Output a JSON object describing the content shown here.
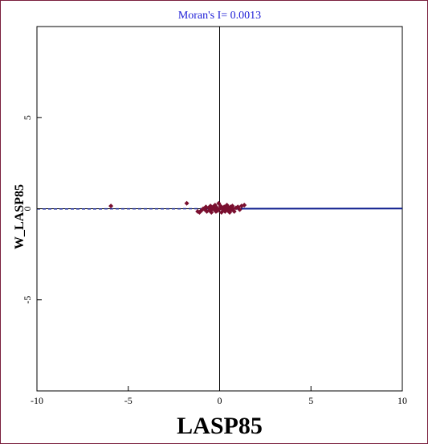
{
  "chart_data": {
    "type": "scatter",
    "title": "Moran's I= 0.0013",
    "xlabel": "LASP85",
    "ylabel": "W_LASP85",
    "xlim": [
      -10,
      10
    ],
    "ylim": [
      -10,
      10
    ],
    "x_ticks": [
      {
        "value": -10,
        "label": "-10"
      },
      {
        "value": -5,
        "label": "-5"
      },
      {
        "value": 0,
        "label": "0"
      },
      {
        "value": 5,
        "label": "5"
      },
      {
        "value": 10,
        "label": "10"
      }
    ],
    "y_ticks": [
      {
        "value": -5,
        "label": "-5"
      },
      {
        "value": 0,
        "label": "0"
      },
      {
        "value": 5,
        "label": "5"
      }
    ],
    "grid": false,
    "regression_slope": 0.0013,
    "colors": {
      "points": "#7a1030",
      "regression_line": "#0a1a8c",
      "title": "#1c1cd6",
      "axes": "#000000",
      "frame": "#7a1f3d"
    },
    "points": [
      {
        "x": -5.95,
        "y": 0.15
      },
      {
        "x": -1.8,
        "y": 0.3
      },
      {
        "x": -1.2,
        "y": -0.15
      },
      {
        "x": -1.1,
        "y": -0.2
      },
      {
        "x": -1.0,
        "y": -0.1
      },
      {
        "x": -0.9,
        "y": 0.0
      },
      {
        "x": -0.8,
        "y": -0.05
      },
      {
        "x": -0.75,
        "y": 0.1
      },
      {
        "x": -0.7,
        "y": -0.15
      },
      {
        "x": -0.6,
        "y": 0.05
      },
      {
        "x": -0.55,
        "y": -0.1
      },
      {
        "x": -0.5,
        "y": 0.15
      },
      {
        "x": -0.45,
        "y": -0.2
      },
      {
        "x": -0.4,
        "y": 0.0
      },
      {
        "x": -0.35,
        "y": 0.1
      },
      {
        "x": -0.3,
        "y": -0.05
      },
      {
        "x": -0.25,
        "y": 0.2
      },
      {
        "x": -0.2,
        "y": -0.15
      },
      {
        "x": -0.15,
        "y": 0.05
      },
      {
        "x": -0.1,
        "y": -0.1
      },
      {
        "x": -0.05,
        "y": 0.3
      },
      {
        "x": 0.0,
        "y": 0.0
      },
      {
        "x": 0.05,
        "y": 0.15
      },
      {
        "x": 0.1,
        "y": -0.2
      },
      {
        "x": 0.15,
        "y": 0.05
      },
      {
        "x": 0.2,
        "y": -0.05
      },
      {
        "x": 0.25,
        "y": 0.1
      },
      {
        "x": 0.3,
        "y": -0.15
      },
      {
        "x": 0.35,
        "y": 0.0
      },
      {
        "x": 0.4,
        "y": 0.2
      },
      {
        "x": 0.45,
        "y": -0.1
      },
      {
        "x": 0.5,
        "y": 0.05
      },
      {
        "x": 0.55,
        "y": -0.2
      },
      {
        "x": 0.6,
        "y": 0.1
      },
      {
        "x": 0.65,
        "y": -0.05
      },
      {
        "x": 0.7,
        "y": 0.15
      },
      {
        "x": 0.75,
        "y": 0.0
      },
      {
        "x": 0.8,
        "y": -0.15
      },
      {
        "x": 0.9,
        "y": 0.05
      },
      {
        "x": 1.0,
        "y": 0.1
      },
      {
        "x": 1.1,
        "y": -0.05
      },
      {
        "x": 1.2,
        "y": 0.15
      },
      {
        "x": 1.35,
        "y": 0.2
      }
    ]
  }
}
